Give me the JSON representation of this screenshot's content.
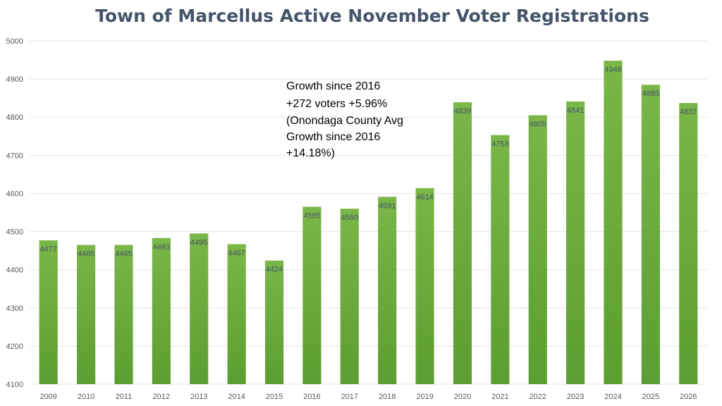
{
  "chart_data": {
    "type": "bar",
    "title": "Town of Marcellus Active November Voter Registrations",
    "xlabel": "",
    "ylabel": "",
    "categories": [
      "2009",
      "2010",
      "2011",
      "2012",
      "2013",
      "2014",
      "2015",
      "2016",
      "2017",
      "2018",
      "2019",
      "2020",
      "2021",
      "2022",
      "2023",
      "2024",
      "2025",
      "2026"
    ],
    "values": [
      4477,
      4465,
      4465,
      4483,
      4495,
      4467,
      4424,
      4565,
      4560,
      4591,
      4614,
      4839,
      4753,
      4805,
      4841,
      4948,
      4885,
      4837
    ],
    "ylim": [
      4100,
      5000
    ],
    "yticks": [
      4100,
      4200,
      4300,
      4400,
      4500,
      4600,
      4700,
      4800,
      4900,
      5000
    ],
    "grid": true,
    "legend": "none",
    "bar_color_top": "#7ab648",
    "bar_color_bottom": "#5c9e31",
    "annotation": {
      "lines": [
        "Growth since 2016",
        "+272 voters +5.96%",
        "(Onondaga County Avg",
        "Growth since 2016",
        "+14.18%)"
      ],
      "placement": "upper-middle"
    }
  }
}
